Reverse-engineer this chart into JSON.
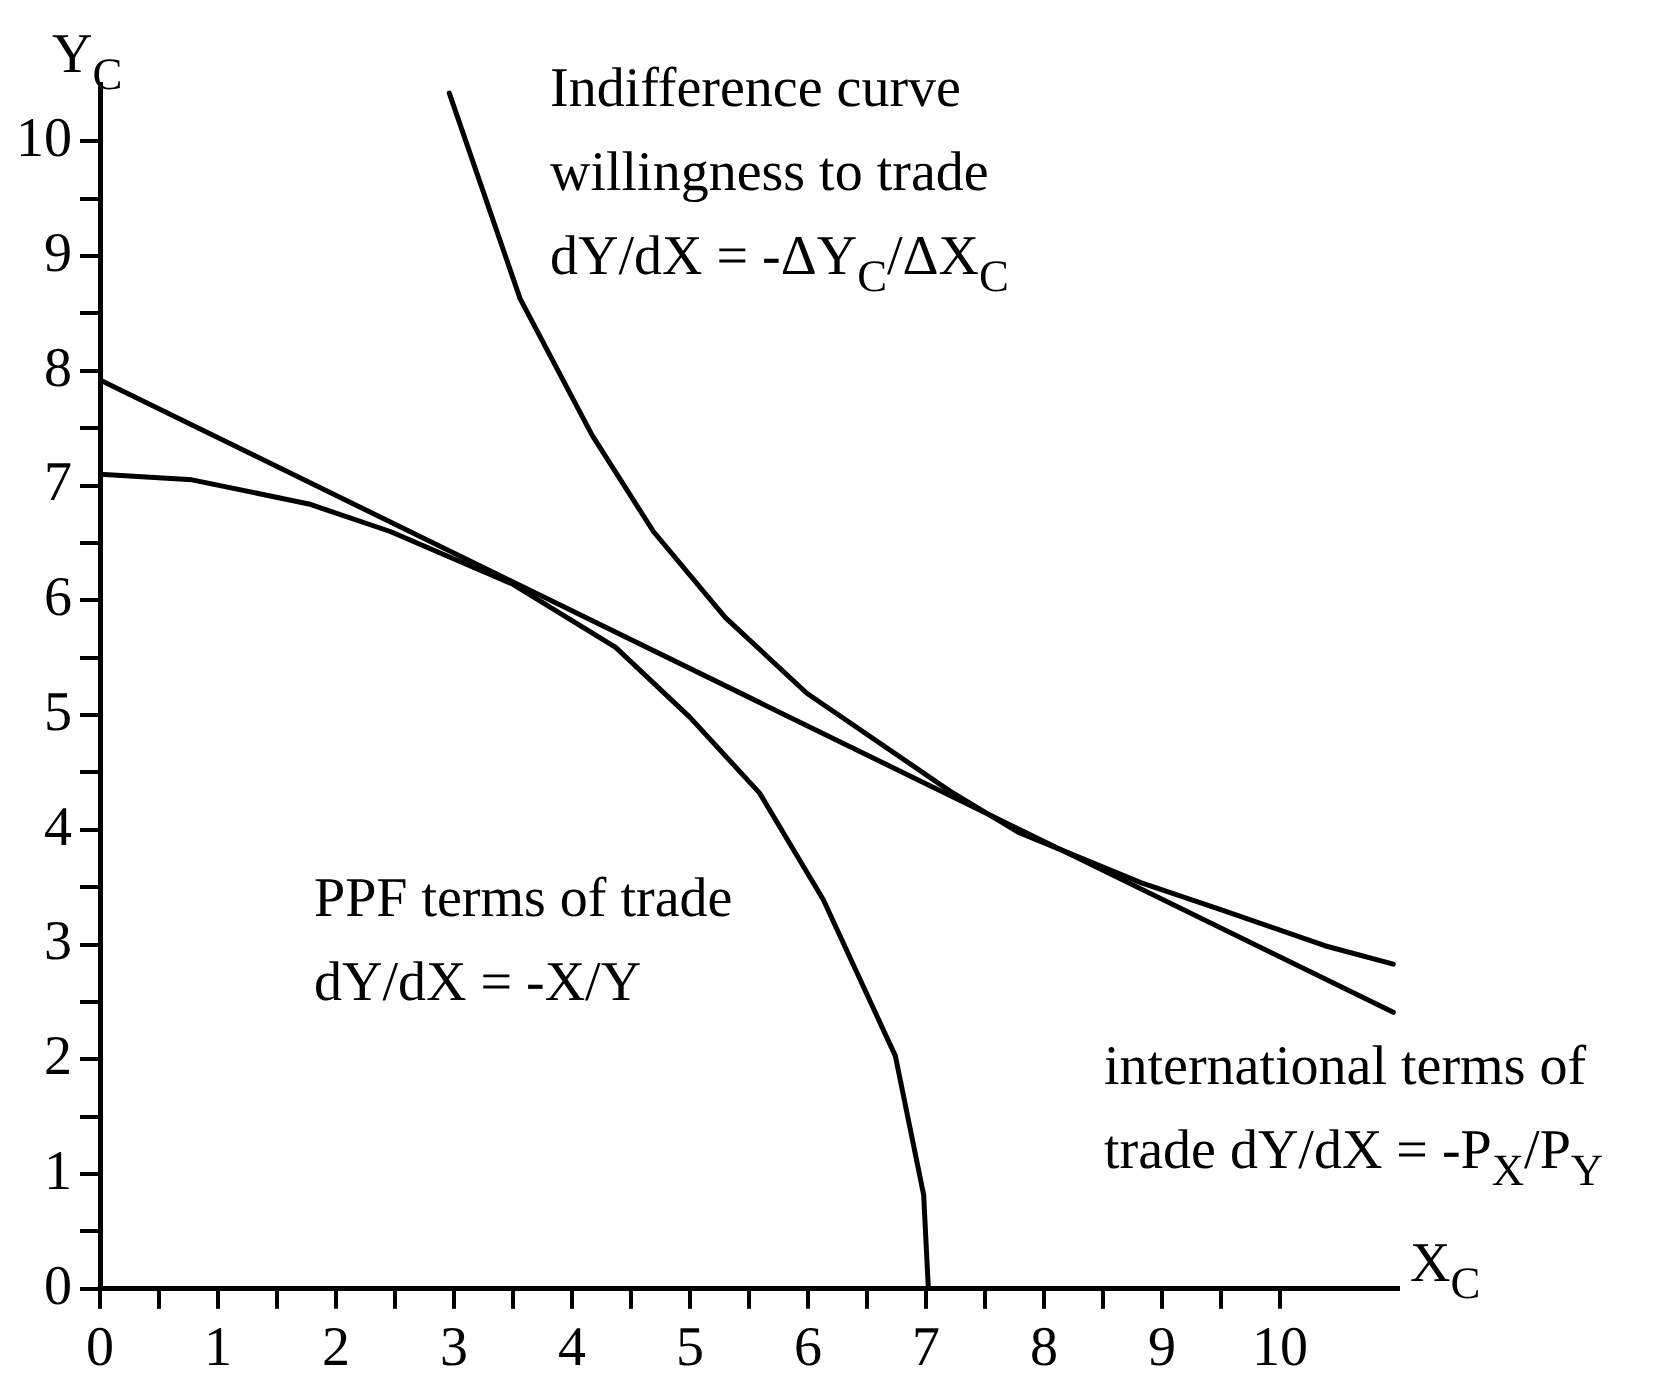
{
  "chart_data": {
    "type": "line",
    "xlabel": "X$_{C}$",
    "ylabel": "Y$_{C}$",
    "xlim": [
      0,
      11
    ],
    "ylim": [
      0,
      10.5
    ],
    "xticks": [
      0,
      {
        "value": 0.5,
        "label": null
      },
      1,
      {
        "value": 1.5,
        "label": null
      },
      2,
      {
        "value": 2.5,
        "label": null
      },
      3,
      {
        "value": 3.5,
        "label": null
      },
      4,
      {
        "value": 4.5,
        "label": null
      },
      5,
      {
        "value": 5.5,
        "label": null
      },
      6,
      {
        "value": 6.5,
        "label": null
      },
      7,
      {
        "value": 7.5,
        "label": null
      },
      8,
      {
        "value": 8.5,
        "label": null
      },
      9,
      {
        "value": 9.5,
        "label": null
      },
      10
    ],
    "yticks": [
      0,
      {
        "value": 0.5,
        "label": null
      },
      1,
      {
        "value": 1.5,
        "label": null
      },
      2,
      {
        "value": 2.5,
        "label": null
      },
      3,
      {
        "value": 3.5,
        "label": null
      },
      4,
      {
        "value": 4.5,
        "label": null
      },
      5,
      {
        "value": 5.5,
        "label": null
      },
      6,
      {
        "value": 6.5,
        "label": null
      },
      7,
      {
        "value": 7.5,
        "label": null
      },
      8,
      {
        "value": 8.5,
        "label": null
      },
      9,
      {
        "value": 9.5,
        "label": null
      },
      10
    ],
    "marker": "none",
    "line_style": "solid",
    "series": [
      {
        "color": "#000000",
        "x": [
          2.96,
          3.56,
          4.17,
          4.69,
          5.3,
          5.99,
          7.2,
          7.78,
          8.82,
          9.51,
          10.38,
          10.96
        ],
        "values": [
          10.42,
          8.63,
          7.44,
          6.6,
          5.85,
          5.19,
          4.34,
          3.98,
          3.54,
          3.3,
          2.99,
          2.83
        ]
      },
      {
        "color": "#000000",
        "x": [
          0,
          0.78,
          1.77,
          2.46,
          3.5,
          4.37,
          5.0,
          5.59,
          6.13,
          6.74,
          6.98,
          7.02
        ],
        "values": [
          7.1,
          7.05,
          6.84,
          6.6,
          6.14,
          5.59,
          4.98,
          4.32,
          3.39,
          2.03,
          0.82,
          0
        ]
      },
      {
        "color": "#000000",
        "x": [
          0,
          10.96
        ],
        "values": [
          7.92,
          2.41
        ]
      }
    ],
    "annotations": [
      "Indifference curve\nwillingness to trade\ndY/dX = -ΔY$_{C}$/ΔX$_{C}$",
      "PPF terms of trade\ndY/dX = -X/Y",
      "international terms of\ntrade dY/dX = -P$_{X}$/P$_{Y}$"
    ]
  }
}
